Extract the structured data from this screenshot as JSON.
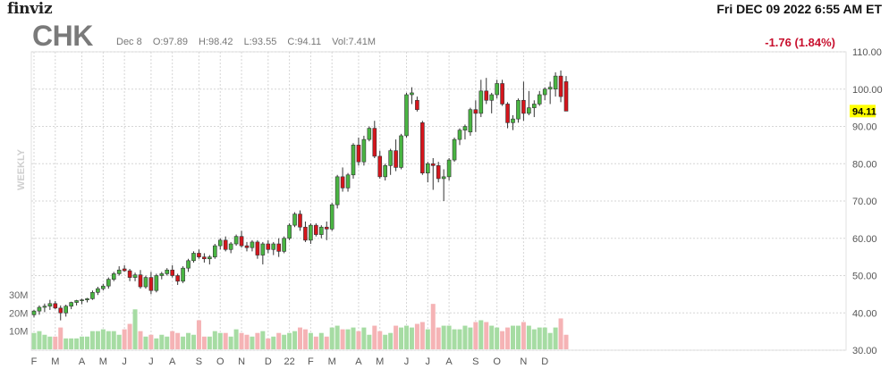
{
  "header": {
    "logo": "finviz",
    "datetime": "Fri DEC 09 2022 6:55 AM ET",
    "ticker": "CHK",
    "bar_date": "Dec 8",
    "open": "O:97.89",
    "high": "H:98.42",
    "low": "L:93.55",
    "close": "C:94.11",
    "volume": "Vol:7.41M",
    "change": "-1.76 (1.84%)"
  },
  "chart_data": {
    "type": "candlestick",
    "period_label": "WEEKLY",
    "last_price": 94.11,
    "last_price_label": "94.11",
    "ylim": [
      30,
      110
    ],
    "y_ticks": [
      {
        "v": 110,
        "label": "110.00"
      },
      {
        "v": 100,
        "label": "100.00"
      },
      {
        "v": 90,
        "label": "90.00"
      },
      {
        "v": 80,
        "label": "80.00"
      },
      {
        "v": 70,
        "label": "70.00"
      },
      {
        "v": 60,
        "label": "60.00"
      },
      {
        "v": 50,
        "label": "50.00"
      },
      {
        "v": 40,
        "label": "40.00"
      },
      {
        "v": 30,
        "label": "30.00"
      }
    ],
    "volume_ticks": [
      {
        "v": 30,
        "label": "30M"
      },
      {
        "v": 20,
        "label": "20M"
      },
      {
        "v": 10,
        "label": "10M"
      }
    ],
    "volume_max": 30,
    "x_ticks": [
      {
        "i": 0,
        "label": "F"
      },
      {
        "i": 4,
        "label": "M"
      },
      {
        "i": 9,
        "label": "A"
      },
      {
        "i": 13,
        "label": "M"
      },
      {
        "i": 17,
        "label": "J"
      },
      {
        "i": 22,
        "label": "J"
      },
      {
        "i": 26,
        "label": "A"
      },
      {
        "i": 31,
        "label": "S"
      },
      {
        "i": 35,
        "label": "O"
      },
      {
        "i": 39,
        "label": "N"
      },
      {
        "i": 44,
        "label": "D"
      },
      {
        "i": 48,
        "label": "22"
      },
      {
        "i": 52,
        "label": "F"
      },
      {
        "i": 56,
        "label": "M"
      },
      {
        "i": 61,
        "label": "A"
      },
      {
        "i": 65,
        "label": "M"
      },
      {
        "i": 70,
        "label": "J"
      },
      {
        "i": 74,
        "label": "J"
      },
      {
        "i": 78,
        "label": "A"
      },
      {
        "i": 83,
        "label": "S"
      },
      {
        "i": 87,
        "label": "O"
      },
      {
        "i": 92,
        "label": "N"
      },
      {
        "i": 96,
        "label": "D"
      }
    ],
    "candles": [
      [
        39.5,
        40.8,
        38.8,
        40.5,
        9
      ],
      [
        40.5,
        42.0,
        39.5,
        41.5,
        10
      ],
      [
        41.5,
        42.5,
        40.2,
        41.8,
        8
      ],
      [
        41.8,
        43.5,
        40.8,
        42.5,
        7
      ],
      [
        42.5,
        43.2,
        41.0,
        41.3,
        7
      ],
      [
        41.3,
        42.0,
        38.0,
        40.0,
        12
      ],
      [
        40.0,
        42.2,
        39.0,
        41.8,
        6
      ],
      [
        41.8,
        43.0,
        41.0,
        42.8,
        6
      ],
      [
        42.8,
        43.5,
        42.0,
        43.3,
        6
      ],
      [
        43.3,
        43.8,
        42.3,
        43.5,
        7
      ],
      [
        43.5,
        44.0,
        42.8,
        43.8,
        7
      ],
      [
        43.8,
        46.0,
        43.5,
        45.5,
        10
      ],
      [
        45.5,
        47.0,
        44.8,
        46.5,
        10
      ],
      [
        46.5,
        47.8,
        46.0,
        47.2,
        11
      ],
      [
        47.2,
        49.5,
        46.5,
        49.0,
        10
      ],
      [
        49.0,
        51.0,
        48.5,
        50.5,
        10
      ],
      [
        50.5,
        52.5,
        50.0,
        51.5,
        8
      ],
      [
        51.8,
        52.8,
        51.0,
        51.3,
        11
      ],
      [
        51.3,
        51.8,
        48.5,
        49.5,
        14
      ],
      [
        49.5,
        50.8,
        48.5,
        50.2,
        22
      ],
      [
        50.2,
        51.5,
        46.5,
        47.0,
        10
      ],
      [
        47.0,
        50.0,
        46.5,
        49.5,
        7
      ],
      [
        49.5,
        51.0,
        45.0,
        46.0,
        8
      ],
      [
        46.0,
        50.5,
        45.5,
        50.0,
        6
      ],
      [
        50.0,
        51.0,
        49.0,
        50.5,
        8
      ],
      [
        50.5,
        52.0,
        50.0,
        51.5,
        7
      ],
      [
        51.5,
        52.8,
        49.5,
        50.0,
        10
      ],
      [
        50.0,
        50.5,
        47.5,
        48.5,
        9
      ],
      [
        48.5,
        52.5,
        48.0,
        52.0,
        7
      ],
      [
        52.0,
        54.5,
        51.0,
        54.0,
        9
      ],
      [
        54.0,
        56.5,
        53.5,
        56.0,
        8
      ],
      [
        56.0,
        57.0,
        54.5,
        55.0,
        16
      ],
      [
        55.0,
        56.0,
        53.5,
        54.5,
        7
      ],
      [
        54.5,
        55.5,
        53.0,
        55.0,
        7
      ],
      [
        55.0,
        58.5,
        54.5,
        58.0,
        10
      ],
      [
        58.0,
        60.0,
        57.0,
        59.5,
        9
      ],
      [
        59.5,
        60.5,
        56.5,
        57.0,
        9
      ],
      [
        57.0,
        59.0,
        56.0,
        58.5,
        7
      ],
      [
        58.5,
        61.0,
        58.0,
        60.5,
        11
      ],
      [
        60.5,
        62.0,
        57.5,
        58.0,
        9
      ],
      [
        58.0,
        59.0,
        56.5,
        57.5,
        8
      ],
      [
        57.5,
        59.5,
        56.5,
        59.0,
        7
      ],
      [
        59.0,
        59.5,
        54.5,
        55.5,
        9
      ],
      [
        55.5,
        59.0,
        53.0,
        58.5,
        10
      ],
      [
        58.5,
        59.5,
        56.0,
        57.0,
        6
      ],
      [
        57.0,
        59.0,
        55.5,
        58.5,
        7
      ],
      [
        58.5,
        60.0,
        55.0,
        56.5,
        9
      ],
      [
        56.5,
        60.5,
        56.0,
        60.0,
        8
      ],
      [
        60.0,
        64.0,
        59.5,
        63.5,
        9
      ],
      [
        63.5,
        67.0,
        63.0,
        66.5,
        10
      ],
      [
        66.5,
        67.5,
        62.0,
        63.0,
        12
      ],
      [
        63.0,
        64.5,
        59.0,
        59.5,
        11
      ],
      [
        59.5,
        64.0,
        58.5,
        63.5,
        9
      ],
      [
        63.5,
        64.0,
        60.5,
        61.0,
        7
      ],
      [
        61.0,
        63.5,
        60.0,
        63.0,
        9
      ],
      [
        63.0,
        64.5,
        59.5,
        62.5,
        7
      ],
      [
        62.5,
        69.5,
        62.0,
        69.0,
        12
      ],
      [
        69.0,
        77.0,
        68.0,
        76.5,
        13
      ],
      [
        76.5,
        79.0,
        72.5,
        73.5,
        11
      ],
      [
        73.5,
        77.5,
        72.5,
        77.0,
        11
      ],
      [
        77.0,
        85.5,
        76.0,
        85.0,
        12
      ],
      [
        85.0,
        87.0,
        79.5,
        80.5,
        10
      ],
      [
        80.5,
        87.5,
        79.5,
        86.5,
        12
      ],
      [
        86.5,
        90.0,
        86.0,
        89.5,
        8
      ],
      [
        89.5,
        91.5,
        81.5,
        82.0,
        13
      ],
      [
        82.0,
        83.5,
        76.0,
        76.5,
        10
      ],
      [
        76.5,
        80.0,
        75.5,
        79.5,
        8
      ],
      [
        79.5,
        84.0,
        77.0,
        83.5,
        9
      ],
      [
        83.5,
        86.5,
        78.0,
        79.0,
        13
      ],
      [
        79.0,
        88.0,
        78.5,
        87.5,
        12
      ],
      [
        87.5,
        99.0,
        87.0,
        98.5,
        13
      ],
      [
        98.5,
        100.5,
        96.0,
        99.0,
        12
      ],
      [
        97.0,
        98.0,
        94.0,
        94.5,
        14
      ],
      [
        91.0,
        91.5,
        77.0,
        77.5,
        15
      ],
      [
        77.5,
        80.5,
        75.0,
        80.0,
        11
      ],
      [
        80.0,
        81.5,
        73.0,
        79.5,
        25
      ],
      [
        79.5,
        80.5,
        75.0,
        76.0,
        12
      ],
      [
        76.0,
        78.5,
        70.0,
        76.5,
        13
      ],
      [
        76.5,
        81.5,
        75.5,
        81.0,
        13
      ],
      [
        81.0,
        87.0,
        80.5,
        86.5,
        11
      ],
      [
        86.5,
        89.5,
        85.0,
        89.0,
        11
      ],
      [
        89.0,
        90.5,
        86.5,
        90.0,
        13
      ],
      [
        88.5,
        95.0,
        87.5,
        94.5,
        12
      ],
      [
        94.5,
        97.0,
        88.5,
        93.5,
        15
      ],
      [
        93.5,
        102.5,
        92.5,
        99.5,
        16
      ],
      [
        99.5,
        103.0,
        96.0,
        97.0,
        15
      ],
      [
        97.0,
        99.0,
        93.5,
        98.5,
        13
      ],
      [
        98.5,
        102.5,
        97.5,
        101.5,
        12
      ],
      [
        101.5,
        102.5,
        95.5,
        96.0,
        10
      ],
      [
        96.0,
        96.5,
        89.5,
        91.0,
        12
      ],
      [
        91.0,
        93.0,
        89.0,
        92.0,
        13
      ],
      [
        92.0,
        97.5,
        91.0,
        97.0,
        13
      ],
      [
        97.0,
        102.0,
        91.5,
        93.5,
        15
      ],
      [
        93.5,
        99.5,
        93.0,
        95.0,
        13
      ],
      [
        95.0,
        97.0,
        92.5,
        96.0,
        11
      ],
      [
        96.0,
        99.5,
        95.5,
        98.5,
        12
      ],
      [
        98.5,
        100.5,
        97.0,
        100.0,
        12
      ],
      [
        100.0,
        102.0,
        96.0,
        100.5,
        9
      ],
      [
        100.0,
        104.5,
        98.0,
        103.5,
        12
      ],
      [
        103.5,
        105.0,
        96.5,
        98.0,
        17
      ],
      [
        102.0,
        103.5,
        94.5,
        94.1,
        8
      ]
    ]
  },
  "colors": {
    "up": "#49b542",
    "down": "#d5151c",
    "up_volume": "#a6dca3",
    "down_volume": "#f5b3b5",
    "grid": "#d6d6d6",
    "price_tag": "#ffff00"
  }
}
